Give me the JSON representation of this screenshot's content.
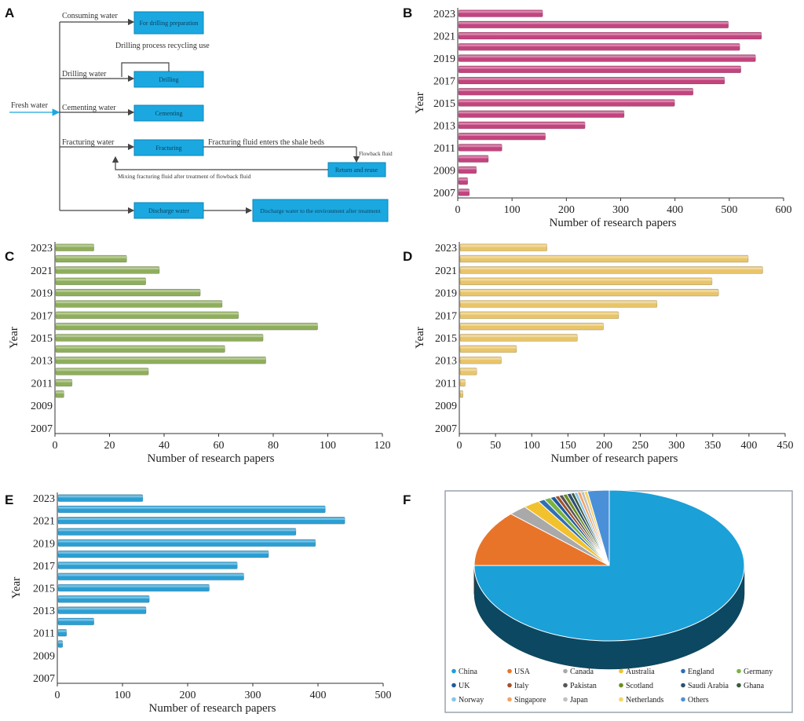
{
  "panel_letters": [
    "A",
    "B",
    "C",
    "D",
    "E",
    "F"
  ],
  "flowchart": {
    "input_label": "Fresh water",
    "branches": [
      {
        "label": "Consuming water",
        "box": "For drilling preparation"
      },
      {
        "label": "Drilling water",
        "box": "Drilling"
      },
      {
        "label": "Cementing water",
        "box": "Cementing"
      },
      {
        "label": "Fracturing water",
        "box": "Fracturing"
      },
      {
        "label": "",
        "box": "Discharge water"
      }
    ],
    "drilling_recycle_note": "Drilling process recycling use",
    "fracturing_note": "Fracturing fluid enters the shale beds",
    "flowback_label": "Flowback fluid",
    "flowback_box": "Return and reuse",
    "mixing_note": "Mixing fracturing fluid after treatment of flowback fluid",
    "final_box": "Discharge water to the environment after treatment"
  },
  "colors": {
    "B": "#c2447e",
    "C": "#8fae5c",
    "D": "#e9c56a",
    "E": "#2b9fd3",
    "flow_box": "#1ba8e0"
  },
  "chart_data": [
    {
      "panel": "B",
      "type": "bar",
      "orientation": "horizontal",
      "categories": [
        "2007",
        "2008",
        "2009",
        "2010",
        "2011",
        "2012",
        "2013",
        "2014",
        "2015",
        "2016",
        "2017",
        "2018",
        "2019",
        "2020",
        "2021",
        "2022",
        "2023"
      ],
      "values": [
        20,
        17,
        33,
        55,
        80,
        160,
        233,
        305,
        398,
        432,
        490,
        520,
        547,
        518,
        558,
        497,
        155
      ],
      "ytick_labels": [
        "2007",
        "2009",
        "2011",
        "2013",
        "2015",
        "2017",
        "2019",
        "2021",
        "2023"
      ],
      "xticks": [
        0,
        100,
        200,
        300,
        400,
        500,
        600
      ],
      "xlim": [
        0,
        600
      ],
      "xlabel": "Number of research papers",
      "ylabel": "Year"
    },
    {
      "panel": "C",
      "type": "bar",
      "orientation": "horizontal",
      "categories": [
        "2007",
        "2008",
        "2009",
        "2010",
        "2011",
        "2012",
        "2013",
        "2014",
        "2015",
        "2016",
        "2017",
        "2018",
        "2019",
        "2020",
        "2021",
        "2022",
        "2023"
      ],
      "values": [
        0,
        0,
        0,
        3,
        6,
        34,
        77,
        62,
        76,
        96,
        67,
        61,
        53,
        33,
        38,
        26,
        14
      ],
      "ytick_labels": [
        "2007",
        "2009",
        "2011",
        "2013",
        "2015",
        "2017",
        "2019",
        "2021",
        "2023"
      ],
      "xticks": [
        0,
        20,
        40,
        60,
        80,
        100,
        120
      ],
      "xlim": [
        0,
        120
      ],
      "xlabel": "Number of research papers",
      "ylabel": "Year"
    },
    {
      "panel": "D",
      "type": "bar",
      "orientation": "horizontal",
      "categories": [
        "2007",
        "2008",
        "2009",
        "2010",
        "2011",
        "2012",
        "2013",
        "2014",
        "2015",
        "2016",
        "2017",
        "2018",
        "2019",
        "2020",
        "2021",
        "2022",
        "2023"
      ],
      "values": [
        0,
        0,
        0,
        4,
        7,
        23,
        57,
        78,
        162,
        198,
        219,
        272,
        357,
        348,
        418,
        398,
        120
      ],
      "ytick_labels": [
        "2007",
        "2009",
        "2011",
        "2013",
        "2015",
        "2017",
        "2019",
        "2021",
        "2023"
      ],
      "xticks": [
        0,
        50,
        100,
        150,
        200,
        250,
        300,
        350,
        400,
        450
      ],
      "xlim": [
        0,
        450
      ],
      "xlabel": "Number of research papers",
      "ylabel": "Year"
    },
    {
      "panel": "E",
      "type": "bar",
      "orientation": "horizontal",
      "categories": [
        "2007",
        "2008",
        "2009",
        "2010",
        "2011",
        "2012",
        "2013",
        "2014",
        "2015",
        "2016",
        "2017",
        "2018",
        "2019",
        "2020",
        "2021",
        "2022",
        "2023"
      ],
      "values": [
        0,
        0,
        0,
        7,
        13,
        55,
        135,
        140,
        232,
        285,
        275,
        323,
        395,
        365,
        440,
        410,
        130
      ],
      "ytick_labels": [
        "2007",
        "2009",
        "2011",
        "2013",
        "2015",
        "2017",
        "2019",
        "2021",
        "2023"
      ],
      "xticks": [
        0,
        100,
        200,
        300,
        400,
        500
      ],
      "xlim": [
        0,
        500
      ],
      "xlabel": "Number of research papers",
      "ylabel": "Year"
    },
    {
      "panel": "F",
      "type": "pie",
      "style": "3d",
      "slices": [
        {
          "label": "China",
          "value": 75.0,
          "color": "#1ba0d8"
        },
        {
          "label": "USA",
          "value": 12.0,
          "color": "#e8742a"
        },
        {
          "label": "Canada",
          "value": 2.2,
          "color": "#a9a9a9"
        },
        {
          "label": "Australia",
          "value": 2.0,
          "color": "#f2c12e"
        },
        {
          "label": "England",
          "value": 0.8,
          "color": "#2f6fb3"
        },
        {
          "label": "Germany",
          "value": 0.8,
          "color": "#7cb342"
        },
        {
          "label": "UK",
          "value": 0.6,
          "color": "#1e5aa0"
        },
        {
          "label": "Italy",
          "value": 0.5,
          "color": "#a0522d"
        },
        {
          "label": "Pakistan",
          "value": 0.5,
          "color": "#555555"
        },
        {
          "label": "Scotland",
          "value": 0.5,
          "color": "#6b8e23"
        },
        {
          "label": "Saudi Arabia",
          "value": 0.5,
          "color": "#2f4f6f"
        },
        {
          "label": "Ghana",
          "value": 0.4,
          "color": "#3a5a40"
        },
        {
          "label": "Norway",
          "value": 0.4,
          "color": "#87c5e8"
        },
        {
          "label": "Singapore",
          "value": 0.4,
          "color": "#f4a261"
        },
        {
          "label": "Japan",
          "value": 0.4,
          "color": "#c0c0c0"
        },
        {
          "label": "Netherlands",
          "value": 0.4,
          "color": "#f6d365"
        },
        {
          "label": "Others",
          "value": 2.6,
          "color": "#4a90d9"
        }
      ],
      "legend": [
        "China",
        "USA",
        "Canada",
        "Australia",
        "England",
        "Germany",
        "UK",
        "Italy",
        "Pakistan",
        "Scotland",
        "Saudi Arabia",
        "Ghana",
        "Norway",
        "Singapore",
        "Japan",
        "Netherlands",
        "Others"
      ],
      "legend_placement": "bottom"
    }
  ]
}
